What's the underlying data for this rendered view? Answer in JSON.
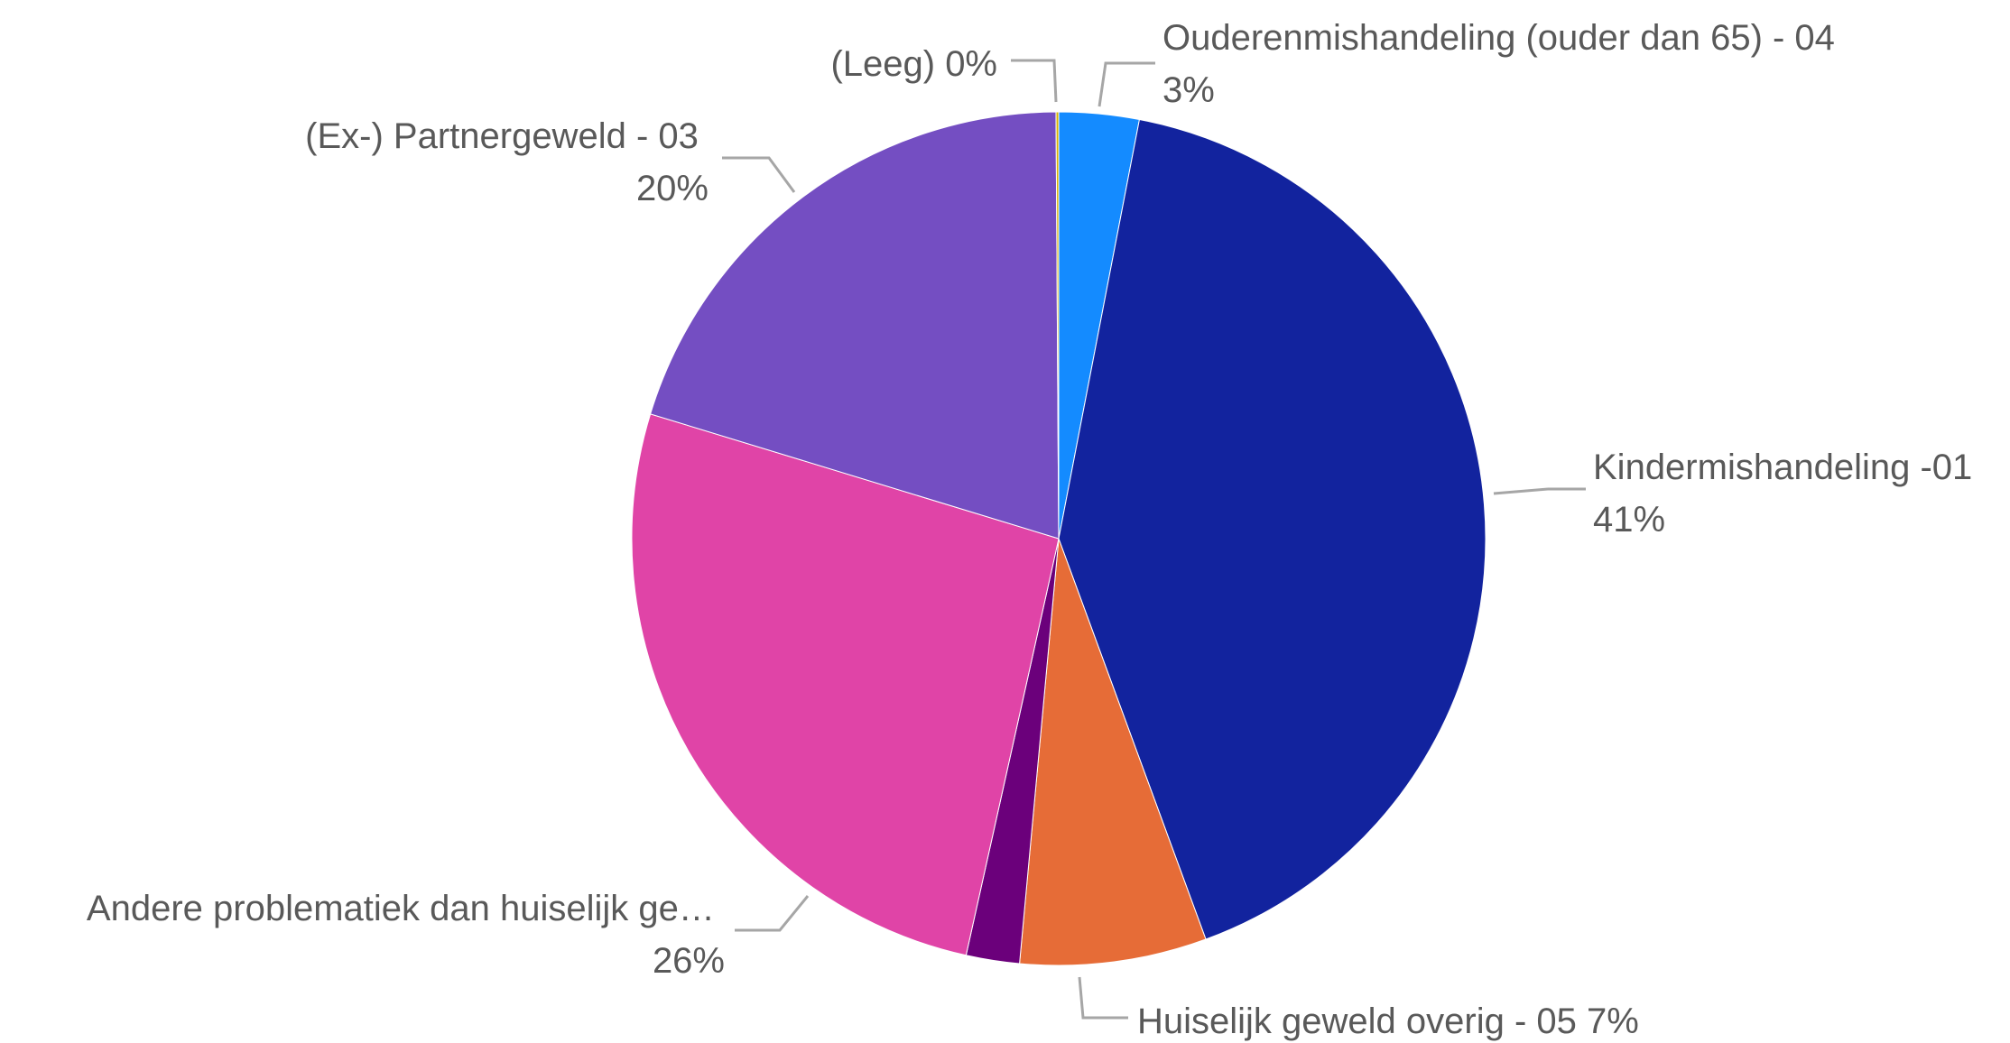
{
  "chart_data": {
    "type": "pie",
    "title": "",
    "legend": "none",
    "slices": [
      {
        "name": "Ouderenmishandeling (ouder dan 65) - 04",
        "value": 3,
        "label": "3%",
        "color": "#148BFF"
      },
      {
        "name": "Kindermishandeling -01",
        "value": 41,
        "label": "41%",
        "color": "#12239E"
      },
      {
        "name": "Huiselijk geweld overig - 05",
        "value": 7,
        "label": "7%",
        "color": "#E66C37"
      },
      {
        "name": "",
        "value": 2,
        "label": "",
        "color": "#6B007B"
      },
      {
        "name": "Andere problematiek dan huiselijk ge…",
        "value": 26,
        "label": "26%",
        "color": "#E044A7"
      },
      {
        "name": "(Ex-) Partnergeweld - 03",
        "value": 20,
        "label": "20%",
        "color": "#744EC2"
      },
      {
        "name": "(Leeg)",
        "value": 0.1,
        "label": "0%",
        "color": "#D9B300"
      }
    ]
  }
}
